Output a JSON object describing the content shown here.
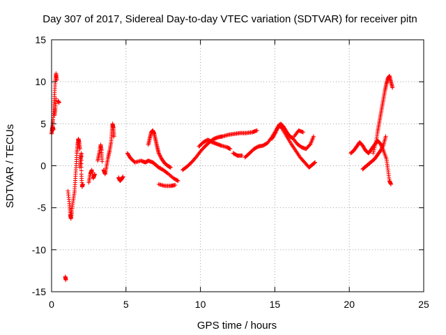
{
  "chart_data": {
    "type": "scatter",
    "title": "Day 307 of 2017, Sidereal Day-to-day VTEC variation (SDTVAR) for receiver pitn",
    "xlabel": "GPS time / hours",
    "ylabel": "SDTVAR / TECUs",
    "xlim": [
      0,
      25
    ],
    "ylim": [
      -15,
      15
    ],
    "x_ticks": [
      0,
      5,
      10,
      15,
      20,
      25
    ],
    "y_ticks": [
      -15,
      -10,
      -5,
      0,
      5,
      10,
      15
    ],
    "x_tick_labels": [
      "0",
      "5",
      "10",
      "15",
      "20",
      "25"
    ],
    "y_tick_labels": [
      "-15",
      "-10",
      "-5",
      "0",
      "5",
      "10",
      "15"
    ],
    "grid": true,
    "marker": "+",
    "color": "#ff0000",
    "series": [
      {
        "name": "SDTVAR",
        "tracks": [
          [
            [
              0.0,
              3.8
            ],
            [
              0.05,
              4.5
            ],
            [
              0.1,
              5.5
            ],
            [
              0.15,
              7.0
            ],
            [
              0.2,
              8.5
            ],
            [
              0.25,
              10.0
            ],
            [
              0.3,
              11.0
            ],
            [
              0.35,
              10.2
            ]
          ],
          [
            [
              0.05,
              4.2
            ],
            [
              0.08,
              4.6
            ],
            [
              0.12,
              4.3
            ]
          ],
          [
            [
              0.2,
              6.0
            ],
            [
              0.25,
              6.8
            ],
            [
              0.3,
              8.0
            ]
          ],
          [
            [
              0.45,
              7.7
            ],
            [
              0.5,
              7.5
            ]
          ],
          [
            [
              0.92,
              -13.2
            ],
            [
              0.96,
              -13.6
            ]
          ],
          [
            [
              1.1,
              -3.0
            ],
            [
              1.2,
              -4.5
            ],
            [
              1.25,
              -5.8
            ],
            [
              1.3,
              -6.3
            ],
            [
              1.35,
              -5.5
            ],
            [
              1.45,
              -4.2
            ],
            [
              1.55,
              -3.0
            ],
            [
              1.6,
              -1.5
            ],
            [
              1.65,
              0.0
            ],
            [
              1.7,
              1.5
            ],
            [
              1.75,
              2.5
            ],
            [
              1.8,
              3.2
            ],
            [
              1.85,
              2.8
            ],
            [
              1.9,
              2.0
            ]
          ],
          [
            [
              1.9,
              -0.2
            ],
            [
              1.95,
              0.8
            ],
            [
              2.0,
              1.5
            ],
            [
              2.0,
              -1.0
            ],
            [
              2.05,
              -2.5
            ],
            [
              2.1,
              -2.2
            ]
          ],
          [
            [
              2.5,
              -2.0
            ],
            [
              2.6,
              -1.0
            ],
            [
              2.7,
              -0.5
            ],
            [
              2.8,
              -1.5
            ],
            [
              2.9,
              -1.0
            ]
          ],
          [
            [
              3.1,
              0.6
            ],
            [
              3.2,
              1.5
            ],
            [
              3.3,
              2.5
            ],
            [
              3.35,
              1.8
            ],
            [
              3.4,
              0.5
            ]
          ],
          [
            [
              3.5,
              -0.5
            ],
            [
              3.6,
              -1.0
            ],
            [
              3.7,
              0.0
            ],
            [
              3.8,
              1.0
            ],
            [
              3.9,
              1.8
            ],
            [
              4.0,
              2.8
            ],
            [
              4.05,
              4.0
            ],
            [
              4.1,
              5.0
            ],
            [
              4.15,
              4.5
            ],
            [
              4.2,
              3.5
            ]
          ],
          [
            [
              4.5,
              -1.4
            ],
            [
              4.6,
              -1.8
            ],
            [
              4.7,
              -1.6
            ],
            [
              4.8,
              -1.3
            ]
          ],
          [
            [
              5.1,
              1.5
            ],
            [
              5.3,
              0.9
            ],
            [
              5.6,
              0.4
            ],
            [
              6.0,
              0.6
            ],
            [
              6.3,
              0.4
            ],
            [
              6.5,
              0.6
            ],
            [
              6.8,
              0.4
            ],
            [
              7.0,
              0.1
            ],
            [
              7.2,
              -0.2
            ],
            [
              7.5,
              -0.5
            ],
            [
              7.8,
              -0.9
            ],
            [
              8.2,
              -1.5
            ],
            [
              8.5,
              -1.8
            ]
          ],
          [
            [
              6.5,
              2.5
            ],
            [
              6.6,
              3.3
            ],
            [
              6.7,
              4.0
            ],
            [
              6.8,
              4.2
            ],
            [
              6.9,
              3.8
            ],
            [
              7.0,
              3.0
            ],
            [
              7.1,
              2.2
            ],
            [
              7.2,
              1.5
            ],
            [
              7.4,
              0.8
            ],
            [
              7.6,
              0.3
            ],
            [
              7.8,
              0.0
            ],
            [
              8.0,
              -0.2
            ]
          ],
          [
            [
              7.2,
              -2.2
            ],
            [
              7.6,
              -2.4
            ],
            [
              8.0,
              -2.4
            ],
            [
              8.3,
              -2.3
            ]
          ],
          [
            [
              8.8,
              -0.5
            ],
            [
              9.1,
              -0.1
            ],
            [
              9.4,
              0.4
            ],
            [
              9.7,
              1.0
            ],
            [
              10.0,
              1.7
            ],
            [
              10.3,
              2.3
            ],
            [
              10.6,
              2.8
            ],
            [
              10.9,
              3.2
            ],
            [
              11.2,
              3.4
            ],
            [
              11.5,
              3.5
            ],
            [
              11.9,
              3.7
            ],
            [
              12.3,
              3.8
            ],
            [
              12.7,
              3.9
            ],
            [
              13.1,
              3.9
            ],
            [
              13.5,
              4.0
            ],
            [
              13.8,
              4.2
            ]
          ],
          [
            [
              9.9,
              2.3
            ],
            [
              10.2,
              2.8
            ],
            [
              10.5,
              3.1
            ],
            [
              10.8,
              2.8
            ],
            [
              11.1,
              2.6
            ],
            [
              11.4,
              2.4
            ],
            [
              11.8,
              2.2
            ],
            [
              12.0,
              2.0
            ]
          ],
          [
            [
              12.2,
              1.5
            ],
            [
              12.5,
              1.2
            ],
            [
              12.8,
              1.2
            ]
          ],
          [
            [
              13.0,
              1.0
            ],
            [
              13.3,
              1.5
            ],
            [
              13.6,
              2.0
            ],
            [
              13.9,
              2.3
            ],
            [
              14.2,
              2.4
            ],
            [
              14.5,
              2.7
            ],
            [
              14.8,
              3.4
            ],
            [
              15.1,
              4.3
            ],
            [
              15.3,
              4.9
            ],
            [
              15.5,
              4.4
            ],
            [
              15.8,
              3.5
            ],
            [
              16.1,
              2.6
            ],
            [
              16.4,
              1.8
            ],
            [
              16.7,
              1.0
            ],
            [
              17.0,
              0.4
            ],
            [
              17.3,
              -0.2
            ],
            [
              17.5,
              0.1
            ],
            [
              17.7,
              0.4
            ]
          ],
          [
            [
              14.8,
              3.2
            ],
            [
              15.0,
              3.8
            ],
            [
              15.2,
              4.5
            ],
            [
              15.4,
              5.0
            ],
            [
              15.6,
              4.6
            ],
            [
              15.8,
              4.0
            ],
            [
              16.0,
              3.5
            ],
            [
              16.2,
              3.3
            ],
            [
              16.5,
              2.6
            ],
            [
              16.8,
              2.2
            ],
            [
              17.1,
              2.0
            ],
            [
              17.4,
              2.6
            ],
            [
              17.6,
              3.5
            ]
          ],
          [
            [
              16.3,
              3.5
            ],
            [
              16.6,
              4.2
            ],
            [
              16.9,
              4.0
            ]
          ],
          [
            [
              20.1,
              1.5
            ],
            [
              20.3,
              1.8
            ],
            [
              20.5,
              2.3
            ],
            [
              20.7,
              2.8
            ],
            [
              20.9,
              2.4
            ],
            [
              21.1,
              1.8
            ],
            [
              21.3,
              1.5
            ],
            [
              21.5,
              2.0
            ],
            [
              21.7,
              2.5
            ],
            [
              21.9,
              3.0
            ],
            [
              22.1,
              2.6
            ],
            [
              22.3,
              1.8
            ],
            [
              22.5,
              0.8
            ],
            [
              22.6,
              -0.5
            ],
            [
              22.7,
              -1.8
            ],
            [
              22.8,
              -2.2
            ]
          ],
          [
            [
              20.9,
              -0.4
            ],
            [
              21.1,
              -0.1
            ],
            [
              21.3,
              0.2
            ],
            [
              21.5,
              0.5
            ],
            [
              21.7,
              0.8
            ],
            [
              21.9,
              1.3
            ],
            [
              22.1,
              1.8
            ],
            [
              22.3,
              2.5
            ],
            [
              22.45,
              3.5
            ]
          ],
          [
            [
              21.6,
              1.5
            ],
            [
              21.8,
              2.8
            ],
            [
              21.9,
              4.0
            ],
            [
              22.0,
              5.0
            ],
            [
              22.1,
              6.0
            ],
            [
              22.2,
              7.0
            ],
            [
              22.3,
              8.0
            ],
            [
              22.4,
              9.0
            ],
            [
              22.5,
              9.8
            ],
            [
              22.6,
              10.4
            ],
            [
              22.7,
              10.7
            ],
            [
              22.8,
              10.0
            ],
            [
              22.9,
              9.3
            ]
          ]
        ]
      }
    ]
  }
}
